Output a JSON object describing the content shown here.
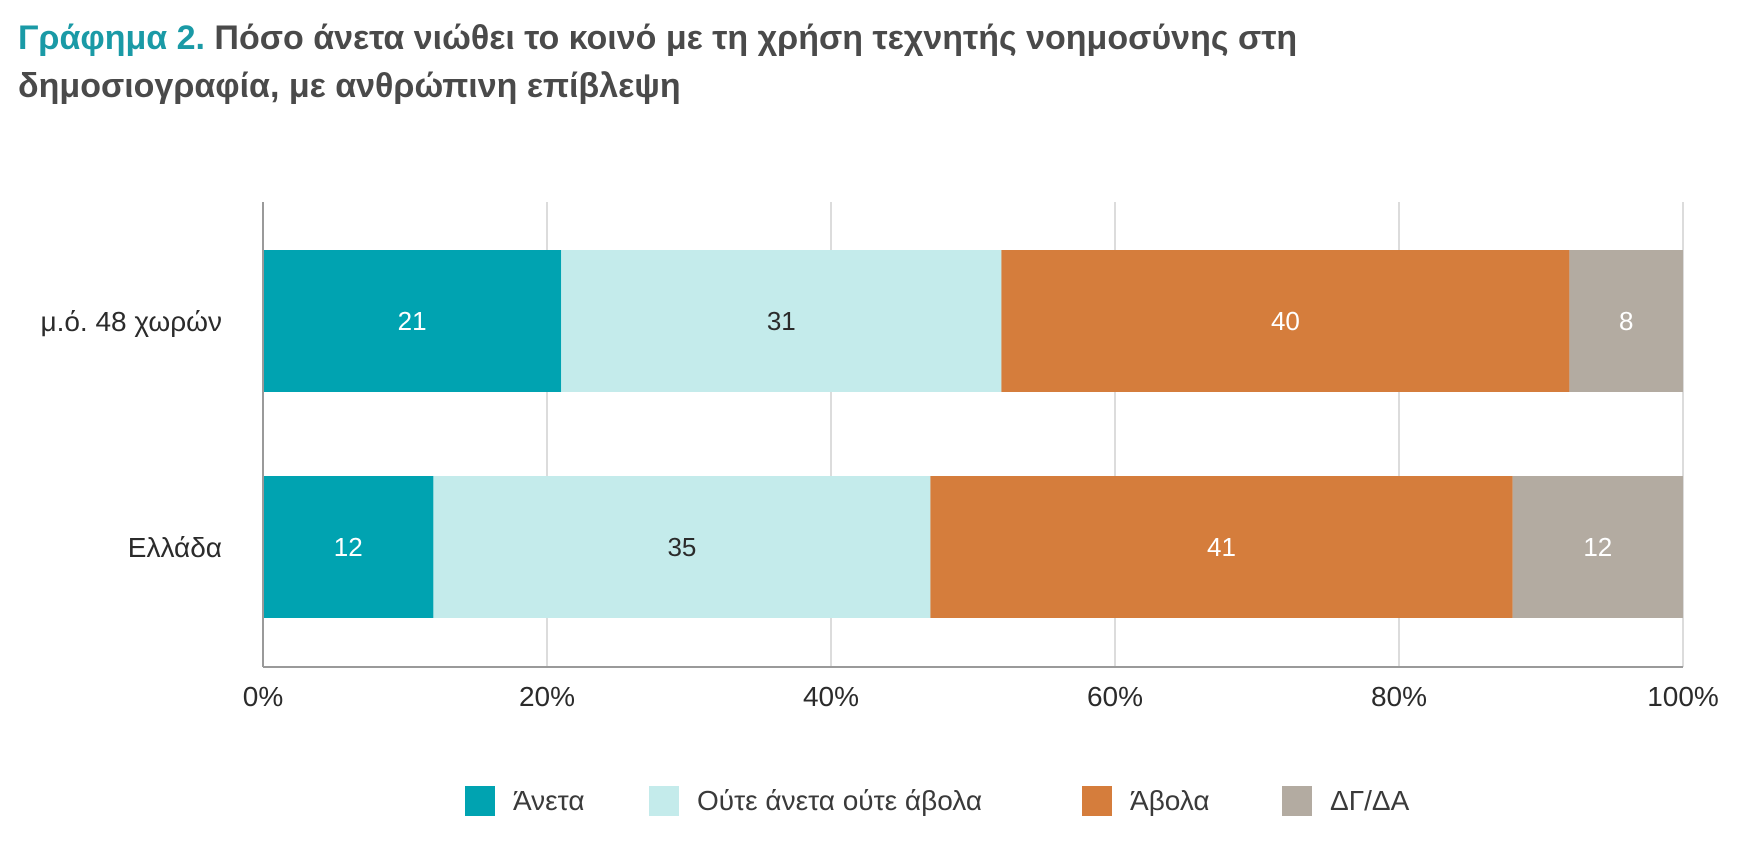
{
  "title": {
    "prefix": "Γράφημα 2.",
    "text": "Πόσο άνετα νιώθει το κοινό με τη χρήση τεχνητής νοημοσύνης στη δημοσιογραφία, με ανθρώπινη επίβλεψη"
  },
  "chart_data": {
    "type": "bar",
    "orientation": "horizontal",
    "stacked": true,
    "categories": [
      "μ.ό. 48 χωρών",
      "Ελλάδα"
    ],
    "series": [
      {
        "name": "Άνετα",
        "values": [
          21,
          12
        ],
        "color": "#00a3b1",
        "label_color": "#ffffff"
      },
      {
        "name": "Ούτε άνετα ούτε άβολα",
        "values": [
          31,
          35
        ],
        "color": "#c4ebeb",
        "label_color": "#2b2b2b"
      },
      {
        "name": "Άβολα",
        "values": [
          40,
          41
        ],
        "color": "#d57d3c",
        "label_color": "#ffffff"
      },
      {
        "name": "ΔΓ/ΔΑ",
        "values": [
          8,
          12
        ],
        "color": "#b3aba1",
        "label_color": "#ffffff"
      }
    ],
    "xlim": [
      0,
      100
    ],
    "xticks": [
      "0%",
      "20%",
      "40%",
      "60%",
      "80%",
      "100%"
    ],
    "grid": true,
    "legend_position": "bottom"
  }
}
